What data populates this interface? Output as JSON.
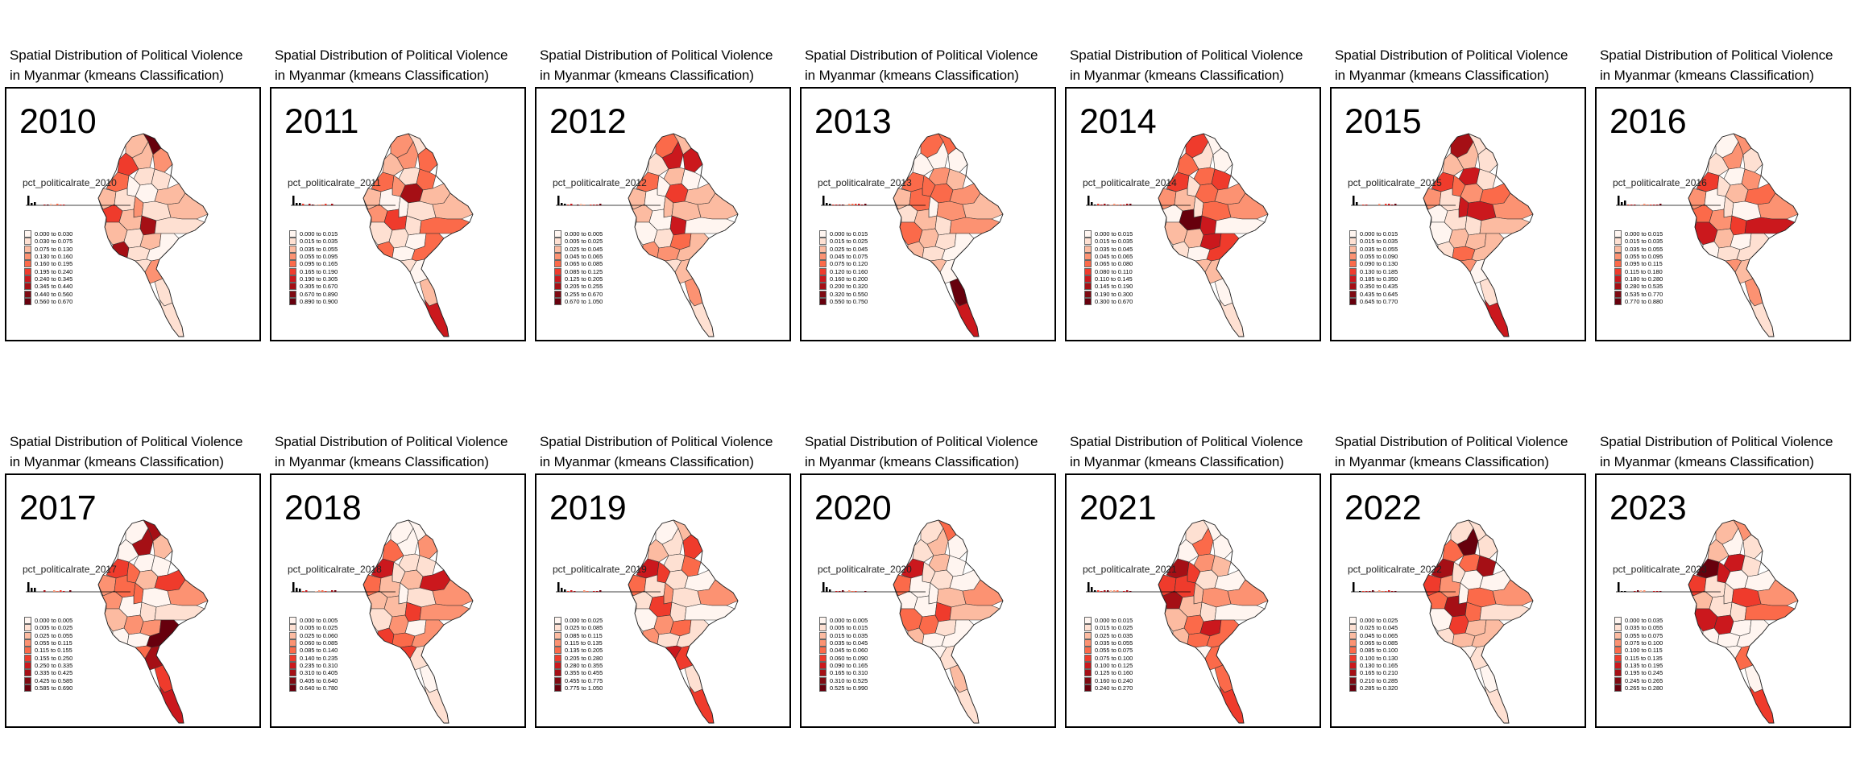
{
  "title_line1": "Spatial Distribution of Political Violence",
  "title_line2": "in Myanmar (kmeans Classification)",
  "hist_label_prefix": "pct_politicalrate_",
  "palette": [
    "#fff5f0",
    "#fee0d2",
    "#fcbba1",
    "#fc9272",
    "#fb6a4a",
    "#ef3b2c",
    "#cb181d",
    "#a50f15",
    "#67000d"
  ],
  "panels": [
    {
      "year": "2010",
      "legend": [
        "0.000 to 0.030",
        "0.030 to 0.075",
        "0.075 to 0.130",
        "0.130 to 0.160",
        "0.160 to 0.195",
        "0.195 to 0.240",
        "0.240 to 0.345",
        "0.345 to 0.440",
        "0.440 to 0.560",
        "0.560 to 0.670"
      ]
    },
    {
      "year": "2011",
      "legend": [
        "0.000 to 0.015",
        "0.015 to 0.035",
        "0.035 to 0.055",
        "0.055 to 0.095",
        "0.095 to 0.165",
        "0.165 to 0.190",
        "0.190 to 0.305",
        "0.305 to 0.670",
        "0.670 to 0.890",
        "0.890 to 0.900"
      ]
    },
    {
      "year": "2012",
      "legend": [
        "0.000 to 0.005",
        "0.005 to 0.025",
        "0.025 to 0.045",
        "0.045 to 0.065",
        "0.065 to 0.085",
        "0.085 to 0.125",
        "0.125 to 0.205",
        "0.205 to 0.255",
        "0.255 to 0.670",
        "0.670 to 1.050"
      ]
    },
    {
      "year": "2013",
      "legend": [
        "0.000 to 0.015",
        "0.015 to 0.025",
        "0.025 to 0.045",
        "0.045 to 0.075",
        "0.075 to 0.120",
        "0.120 to 0.160",
        "0.160 to 0.200",
        "0.200 to 0.320",
        "0.320 to 0.550",
        "0.550 to 0.750"
      ]
    },
    {
      "year": "2014",
      "legend": [
        "0.000 to 0.015",
        "0.015 to 0.035",
        "0.035 to 0.045",
        "0.045 to 0.065",
        "0.065 to 0.080",
        "0.080 to 0.110",
        "0.110 to 0.145",
        "0.145 to 0.190",
        "0.190 to 0.300",
        "0.300 to 0.670"
      ]
    },
    {
      "year": "2015",
      "legend": [
        "0.000 to 0.015",
        "0.015 to 0.035",
        "0.035 to 0.055",
        "0.055 to 0.090",
        "0.090 to 0.130",
        "0.130 to 0.185",
        "0.185 to 0.350",
        "0.350 to 0.435",
        "0.435 to 0.645",
        "0.645 to 0.770"
      ]
    },
    {
      "year": "2016",
      "legend": [
        "0.000 to 0.015",
        "0.015 to 0.035",
        "0.035 to 0.055",
        "0.055 to 0.095",
        "0.095 to 0.115",
        "0.115 to 0.180",
        "0.180 to 0.280",
        "0.280 to 0.535",
        "0.535 to 0.770",
        "0.770 to 0.880"
      ]
    },
    {
      "year": "2017",
      "legend": [
        "0.000 to 0.005",
        "0.005 to 0.025",
        "0.025 to 0.055",
        "0.055 to 0.115",
        "0.115 to 0.155",
        "0.155 to 0.250",
        "0.250 to 0.335",
        "0.335 to 0.425",
        "0.425 to 0.585",
        "0.585 to 0.690"
      ]
    },
    {
      "year": "2018",
      "legend": [
        "0.000 to 0.005",
        "0.005 to 0.025",
        "0.025 to 0.060",
        "0.060 to 0.085",
        "0.085 to 0.140",
        "0.140 to 0.235",
        "0.235 to 0.310",
        "0.310 to 0.405",
        "0.405 to 0.640",
        "0.640 to 0.780"
      ]
    },
    {
      "year": "2019",
      "legend": [
        "0.000 to 0.025",
        "0.025 to 0.085",
        "0.085 to 0.115",
        "0.115 to 0.135",
        "0.135 to 0.205",
        "0.205 to 0.280",
        "0.280 to 0.355",
        "0.355 to 0.455",
        "0.455 to 0.775",
        "0.775 to 1.050"
      ]
    },
    {
      "year": "2020",
      "legend": [
        "0.000 to 0.005",
        "0.005 to 0.015",
        "0.015 to 0.035",
        "0.035 to 0.045",
        "0.045 to 0.060",
        "0.060 to 0.090",
        "0.090 to 0.165",
        "0.165 to 0.310",
        "0.310 to 0.525",
        "0.525 to 0.990"
      ]
    },
    {
      "year": "2021",
      "legend": [
        "0.000 to 0.015",
        "0.015 to 0.025",
        "0.025 to 0.035",
        "0.035 to 0.055",
        "0.055 to 0.075",
        "0.075 to 0.100",
        "0.100 to 0.125",
        "0.125 to 0.160",
        "0.160 to 0.240",
        "0.240 to 0.270"
      ]
    },
    {
      "year": "2022",
      "legend": [
        "0.000 to 0.025",
        "0.025 to 0.045",
        "0.045 to 0.065",
        "0.065 to 0.085",
        "0.085 to 0.100",
        "0.100 to 0.130",
        "0.130 to 0.165",
        "0.165 to 0.210",
        "0.210 to 0.285",
        "0.285 to 0.320"
      ]
    },
    {
      "year": "2023",
      "legend": [
        "0.000 to 0.035",
        "0.035 to 0.055",
        "0.055 to 0.075",
        "0.075 to 0.100",
        "0.100 to 0.115",
        "0.115 to 0.135",
        "0.135 to 0.195",
        "0.195 to 0.245",
        "0.245 to 0.265",
        "0.265 to 0.280"
      ]
    }
  ]
}
